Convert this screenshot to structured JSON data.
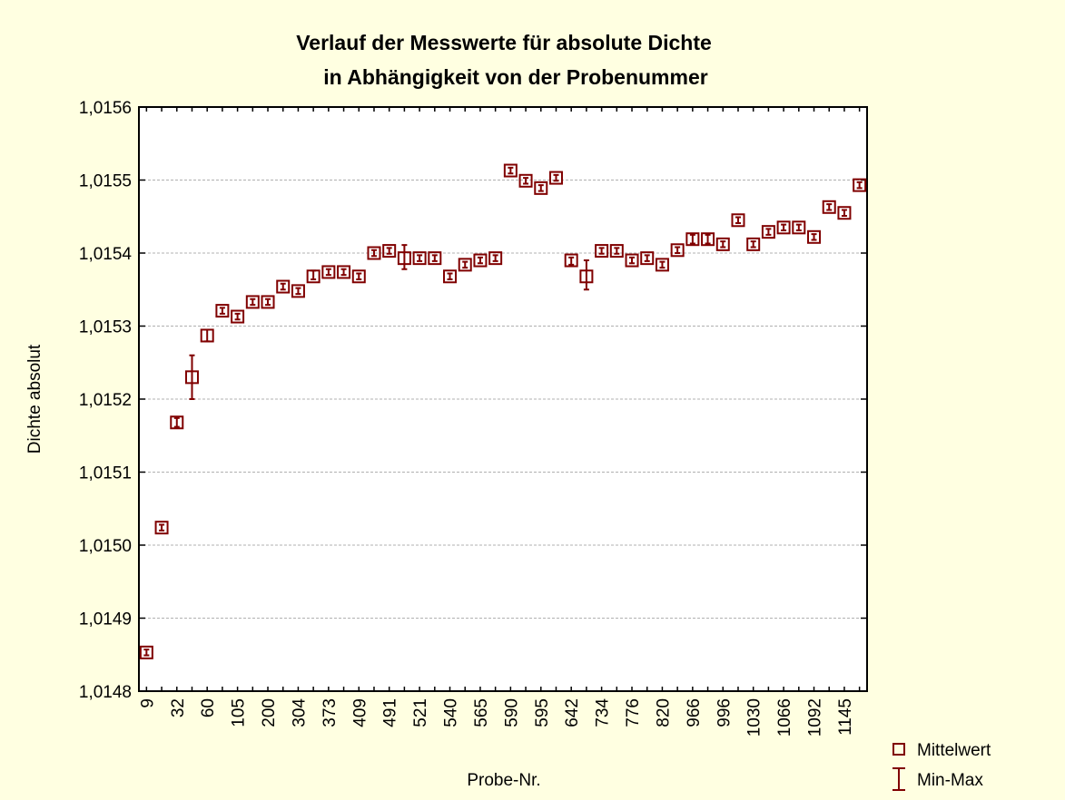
{
  "chart_data": {
    "type": "errorbar",
    "title": [
      "Verlauf der Messwerte für absolute Dichte",
      "in Abhängigkeit von der Probenummer"
    ],
    "xlabel": "Probe-Nr.",
    "ylabel": "Dichte absolut",
    "categories": [
      "9",
      null,
      "32",
      null,
      "60",
      null,
      "105",
      null,
      "200",
      null,
      "304",
      null,
      "373",
      null,
      "409",
      null,
      "491",
      null,
      "521",
      null,
      "540",
      null,
      "565",
      null,
      "590",
      null,
      "595",
      null,
      "642",
      null,
      "734",
      null,
      "776",
      null,
      "820",
      null,
      "966",
      null,
      "996",
      null,
      "1030",
      null,
      "1066",
      null,
      "1092",
      null,
      "1145",
      null
    ],
    "series": [
      {
        "name": "Mittelwert",
        "color": "#800000",
        "values": [
          1.014853,
          1.015024,
          1.015168,
          1.01523,
          1.015287,
          1.015321,
          1.015313,
          1.015333,
          1.015333,
          1.015354,
          1.015348,
          1.015368,
          1.015374,
          1.015374,
          1.015368,
          1.0154,
          1.015403,
          1.015393,
          1.015393,
          1.015393,
          1.015368,
          1.015384,
          1.01539,
          1.015393,
          1.015513,
          1.015499,
          1.015489,
          1.015503,
          1.01539,
          1.015368,
          1.015403,
          1.015403,
          1.01539,
          1.015393,
          1.015384,
          1.015404,
          1.015419,
          1.015419,
          1.015412,
          1.015445,
          1.015412,
          1.015429,
          1.015435,
          1.015435,
          1.015422,
          1.015463,
          1.015455,
          1.015493
        ]
      },
      {
        "name": "Min-Max",
        "color": "#800000",
        "min": [
          1.014849,
          1.01502,
          1.015162,
          1.0152,
          1.015279,
          1.015317,
          1.015309,
          1.015329,
          1.015329,
          1.01535,
          1.015344,
          1.015364,
          1.01537,
          1.01537,
          1.015364,
          1.015396,
          1.015399,
          1.015378,
          1.015389,
          1.015389,
          1.015364,
          1.01538,
          1.015386,
          1.015389,
          1.015509,
          1.015495,
          1.015485,
          1.015499,
          1.015384,
          1.01535,
          1.015399,
          1.015399,
          1.015386,
          1.015389,
          1.01538,
          1.0154,
          1.015413,
          1.015413,
          1.015408,
          1.015441,
          1.015408,
          1.015425,
          1.015431,
          1.015431,
          1.015418,
          1.015459,
          1.015451,
          1.015489
        ],
        "max": [
          1.014857,
          1.015028,
          1.015174,
          1.01526,
          1.015295,
          1.015325,
          1.015317,
          1.015337,
          1.015337,
          1.015358,
          1.015352,
          1.015376,
          1.015378,
          1.015378,
          1.015372,
          1.015404,
          1.015407,
          1.015411,
          1.015397,
          1.015397,
          1.015372,
          1.015388,
          1.015394,
          1.015397,
          1.015517,
          1.015503,
          1.015493,
          1.015507,
          1.015394,
          1.01539,
          1.015407,
          1.015407,
          1.015394,
          1.015397,
          1.015388,
          1.015408,
          1.015425,
          1.015425,
          1.015416,
          1.015449,
          1.015416,
          1.015433,
          1.015439,
          1.015439,
          1.015426,
          1.015467,
          1.015459,
          1.015497
        ]
      }
    ],
    "ylim": [
      1.0148,
      1.0156
    ],
    "yticks": [
      {
        "value": 1.0148,
        "label": "1,0148"
      },
      {
        "value": 1.0149,
        "label": "1,0149"
      },
      {
        "value": 1.015,
        "label": "1,0150"
      },
      {
        "value": 1.0151,
        "label": "1,0151"
      },
      {
        "value": 1.0152,
        "label": "1,0152"
      },
      {
        "value": 1.0153,
        "label": "1,0153"
      },
      {
        "value": 1.0154,
        "label": "1,0154"
      },
      {
        "value": 1.0155,
        "label": "1,0155"
      },
      {
        "value": 1.0156,
        "label": "1,0156"
      }
    ],
    "grid": true,
    "legend": "bottom-right"
  }
}
